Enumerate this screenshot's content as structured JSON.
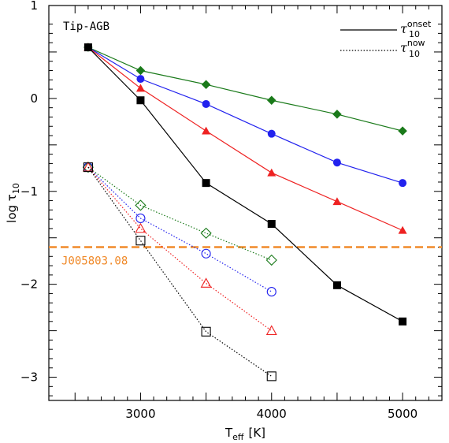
{
  "chart_data": {
    "type": "line",
    "title": "",
    "panel_label": "Tip-AGB",
    "xlabel": {
      "main": "T",
      "sub": "eff",
      "unit": "[K]"
    },
    "ylabel": {
      "main": "log τ",
      "sub": "10"
    },
    "xlim": [
      2300,
      5300
    ],
    "ylim": [
      -3.25,
      1.0
    ],
    "xticks": [
      3000,
      4000,
      5000
    ],
    "xtick_labels": [
      "3000",
      "4000",
      "5000"
    ],
    "yticks": [
      1,
      0,
      -1,
      -2,
      -3
    ],
    "ytick_labels": [
      "1",
      "0",
      "−1",
      "−2",
      "−3"
    ],
    "grid": false,
    "legend": {
      "placement": "top-right",
      "entries": [
        {
          "style": "solid",
          "main": "τ",
          "sub": "10",
          "sup": "onset"
        },
        {
          "style": "dotted",
          "main": "τ",
          "sub": "10",
          "sup": "now"
        }
      ]
    },
    "series": [
      {
        "group": "onset",
        "marker": "diamond",
        "filled": true,
        "color": "#1a7a1a",
        "x": [
          2600,
          3000,
          3500,
          4000,
          4500,
          5000
        ],
        "y": [
          0.55,
          0.3,
          0.15,
          -0.02,
          -0.17,
          -0.35
        ]
      },
      {
        "group": "onset",
        "marker": "circle",
        "filled": true,
        "color": "#2222ee",
        "x": [
          2600,
          3000,
          3500,
          4000,
          4500,
          5000
        ],
        "y": [
          0.55,
          0.21,
          -0.06,
          -0.38,
          -0.69,
          -0.91
        ]
      },
      {
        "group": "onset",
        "marker": "triangle",
        "filled": true,
        "color": "#ee2222",
        "x": [
          2600,
          3000,
          3500,
          4000,
          4500,
          5000
        ],
        "y": [
          0.55,
          0.11,
          -0.35,
          -0.8,
          -1.11,
          -1.42
        ]
      },
      {
        "group": "onset",
        "marker": "square",
        "filled": true,
        "color": "#000000",
        "x": [
          2600,
          3000,
          3500,
          4000,
          4500,
          5000
        ],
        "y": [
          0.55,
          -0.02,
          -0.91,
          -1.35,
          -2.01,
          -2.4
        ]
      },
      {
        "group": "now",
        "marker": "diamond",
        "filled": false,
        "color": "#1a7a1a",
        "x": [
          2600,
          3000,
          3500,
          4000
        ],
        "y": [
          -0.74,
          -1.15,
          -1.45,
          -1.74
        ]
      },
      {
        "group": "now",
        "marker": "circle",
        "filled": false,
        "color": "#2222ee",
        "x": [
          2600,
          3000,
          3500,
          4000
        ],
        "y": [
          -0.74,
          -1.29,
          -1.67,
          -2.08
        ]
      },
      {
        "group": "now",
        "marker": "triangle",
        "filled": false,
        "color": "#ee2222",
        "x": [
          2600,
          3000,
          3500,
          4000
        ],
        "y": [
          -0.74,
          -1.4,
          -1.99,
          -2.5
        ]
      },
      {
        "group": "now",
        "marker": "square",
        "filled": false,
        "color": "#000000",
        "x": [
          2600,
          3000,
          3500,
          4000
        ],
        "y": [
          -0.74,
          -1.53,
          -2.51,
          -2.99
        ]
      }
    ],
    "annotations": [
      {
        "type": "hline",
        "y": -1.6,
        "color": "#f08a2a",
        "style": "dashed",
        "label": "J005803.08"
      }
    ]
  }
}
